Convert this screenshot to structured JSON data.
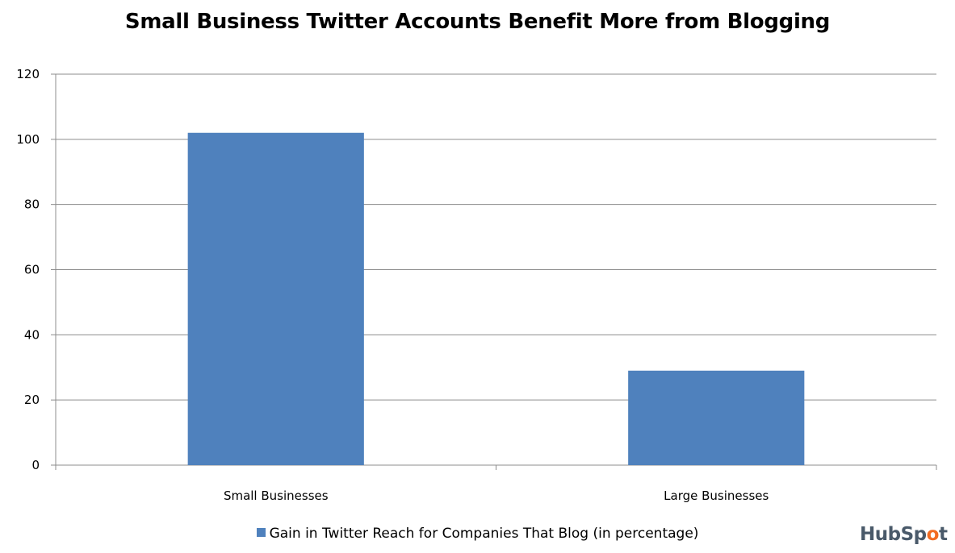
{
  "chart_data": {
    "type": "bar",
    "title": "Small Business Twitter Accounts Benefit More from Blogging",
    "categories": [
      "Small Businesses",
      "Large Businesses"
    ],
    "series": [
      {
        "name": "Gain in Twitter Reach for Companies That Blog (in percentage)",
        "values": [
          102,
          29
        ]
      }
    ],
    "ylim": [
      0,
      120
    ],
    "yticks": [
      0,
      20,
      40,
      60,
      80,
      100,
      120
    ],
    "grid": true,
    "legend": "bottom",
    "colors": {
      "bar": "#4f81bd",
      "grid": "#8c8c8c",
      "axis": "#8c8c8c"
    }
  },
  "branding": {
    "logo_text": "HubSpot"
  }
}
